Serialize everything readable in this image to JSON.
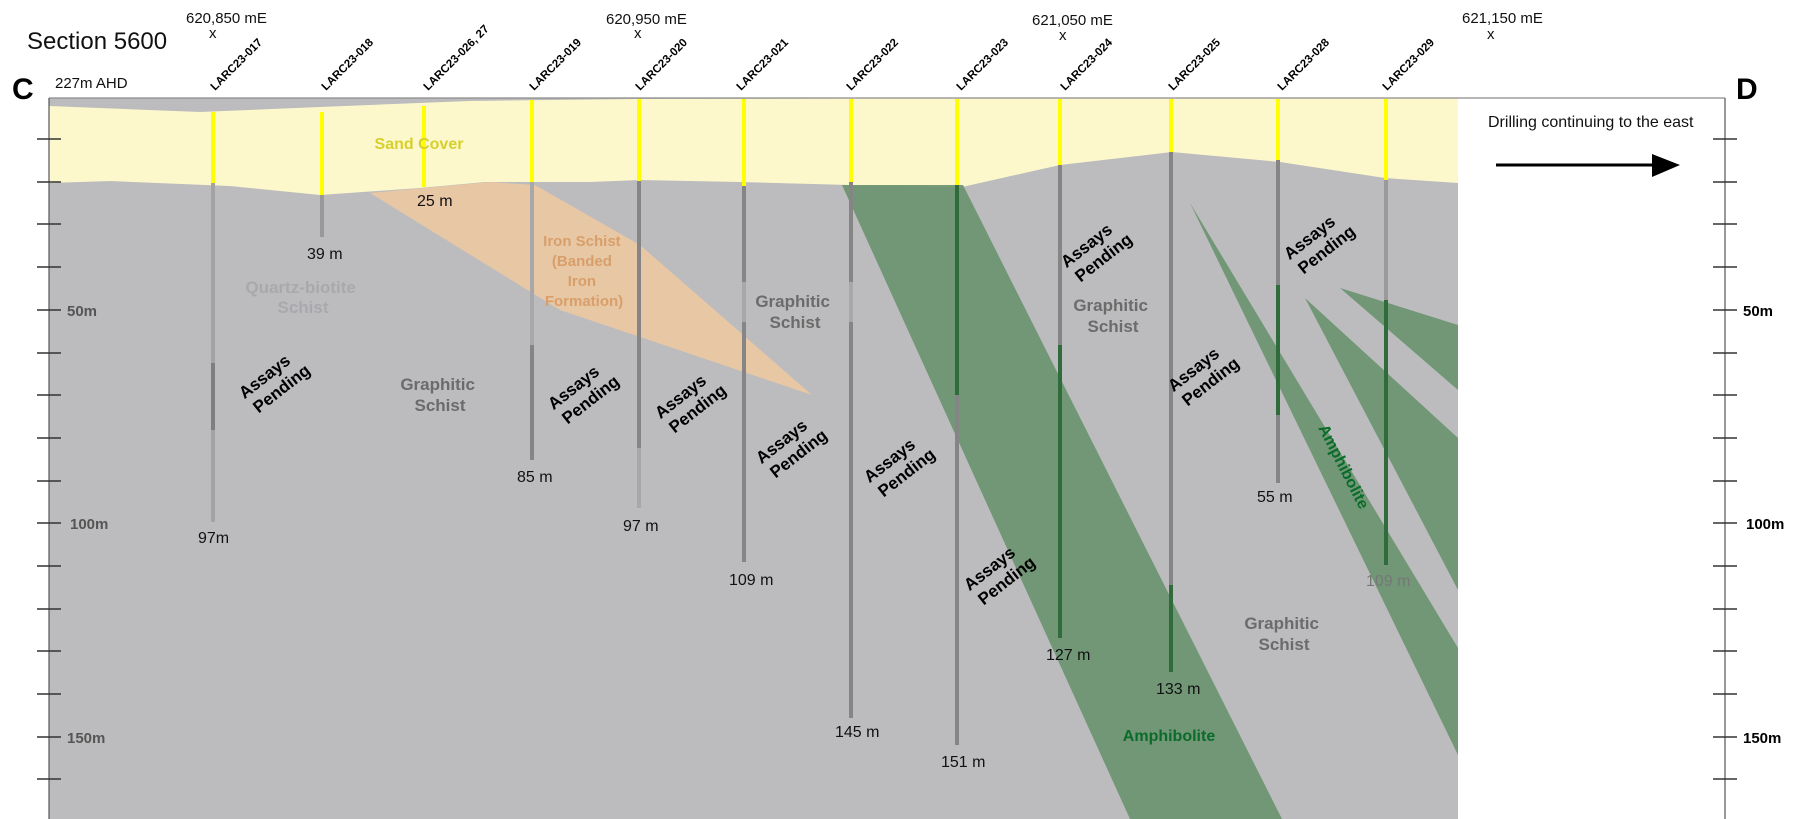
{
  "section_title": "Section 5600",
  "section_start_label": "C",
  "section_end_label": "D",
  "elevation_label": "227m AHD",
  "eastings": [
    {
      "label": "620,850 mE",
      "marker": "x"
    },
    {
      "label": "620,950 mE",
      "marker": "x"
    },
    {
      "label": "621,050 mE",
      "marker": "x"
    },
    {
      "label": "621,150 mE",
      "marker": "x"
    }
  ],
  "holes": [
    {
      "id": "LARC23-017",
      "depth_label": "97m"
    },
    {
      "id": "LARC23-018",
      "depth_label": "39 m"
    },
    {
      "id": "LARC23-026, 27",
      "depth_label": "25 m"
    },
    {
      "id": "LARC23-019",
      "depth_label": "85 m"
    },
    {
      "id": "LARC23-020",
      "depth_label": "97 m"
    },
    {
      "id": "LARC23-021",
      "depth_label": "109 m"
    },
    {
      "id": "LARC23-022",
      "depth_label": "145 m"
    },
    {
      "id": "LARC23-023",
      "depth_label": "151 m"
    },
    {
      "id": "LARC23-024",
      "depth_label": "127 m"
    },
    {
      "id": "LARC23-025",
      "depth_label": "133 m"
    },
    {
      "id": "LARC23-028",
      "depth_label": "55 m"
    },
    {
      "id": "LARC23-029",
      "depth_label": "109 m"
    }
  ],
  "depth_axis_labels": [
    "50m",
    "100m",
    "150m"
  ],
  "units": {
    "sand_cover": "Sand Cover",
    "iron_schist": [
      "Iron Schist",
      "(Banded",
      "Iron",
      "Formation)"
    ],
    "quartz_biotite": [
      "Quartz-biotite",
      "Schist"
    ],
    "graphitic_schist": [
      "Graphitic",
      "Schist"
    ],
    "amphibolite": "Amphibolite"
  },
  "assays_pending": [
    "Assays",
    "Pending"
  ],
  "east_note": "Drilling continuing to the east",
  "colors": {
    "graphitic_schist": "#bcbcbe",
    "sand_cover": "#fdf8cc",
    "iron_schist": "#e7c7a4",
    "amphibolite": "#5d8a62",
    "collar": "#ffff00",
    "trace": "#858585"
  }
}
